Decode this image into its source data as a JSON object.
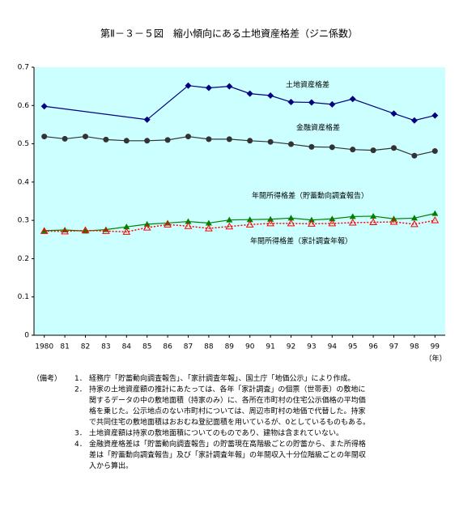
{
  "chart_data": {
    "type": "line",
    "title": "第Ⅱ－３－５図　縮小傾向にある土地資産格差（ジニ係数）",
    "x_unit": "（年）",
    "xlim": [
      1979.5,
      1999.5
    ],
    "xticks": [
      {
        "value": 1980,
        "label": "1980"
      },
      {
        "value": 1981,
        "label": "81"
      },
      {
        "value": 1982,
        "label": "82"
      },
      {
        "value": 1983,
        "label": "83"
      },
      {
        "value": 1984,
        "label": "84"
      },
      {
        "value": 1985,
        "label": "85"
      },
      {
        "value": 1986,
        "label": "86"
      },
      {
        "value": 1987,
        "label": "87"
      },
      {
        "value": 1988,
        "label": "88"
      },
      {
        "value": 1989,
        "label": "89"
      },
      {
        "value": 1990,
        "label": "90"
      },
      {
        "value": 1991,
        "label": "91"
      },
      {
        "value": 1992,
        "label": "92"
      },
      {
        "value": 1993,
        "label": "93"
      },
      {
        "value": 1994,
        "label": "94"
      },
      {
        "value": 1995,
        "label": "95"
      },
      {
        "value": 1996,
        "label": "96"
      },
      {
        "value": 1997,
        "label": "97"
      },
      {
        "value": 1998,
        "label": "98"
      },
      {
        "value": 1999,
        "label": "99"
      }
    ],
    "ylim": [
      0,
      0.7
    ],
    "yticks": [
      0,
      0.1,
      0.2,
      0.3,
      0.4,
      0.5,
      0.6,
      0.7
    ],
    "background": "#ccffff",
    "series": [
      {
        "name": "土地資産格差",
        "color": "#000080",
        "marker": "diamond",
        "dash": "solid",
        "x": [
          1980,
          1985,
          1987,
          1988,
          1989,
          1990,
          1991,
          1992,
          1993,
          1994,
          1995,
          1997,
          1998,
          1999
        ],
        "values": [
          0.598,
          0.563,
          0.652,
          0.646,
          0.65,
          0.631,
          0.626,
          0.609,
          0.608,
          0.603,
          0.617,
          0.579,
          0.561,
          0.574
        ]
      },
      {
        "name": "金融資産格差",
        "color": "#333333",
        "marker": "circle",
        "dash": "solid",
        "x": [
          1980,
          1981,
          1982,
          1983,
          1984,
          1985,
          1986,
          1987,
          1988,
          1989,
          1990,
          1991,
          1992,
          1993,
          1994,
          1995,
          1996,
          1997,
          1998,
          1999
        ],
        "values": [
          0.519,
          0.513,
          0.519,
          0.511,
          0.508,
          0.508,
          0.51,
          0.519,
          0.512,
          0.512,
          0.508,
          0.505,
          0.499,
          0.492,
          0.491,
          0.485,
          0.483,
          0.489,
          0.469,
          0.481
        ]
      },
      {
        "name": "年間所得格差（貯蓄動向調査報告）",
        "color": "#008000",
        "marker": "triangle",
        "dash": "solid",
        "x": [
          1980,
          1981,
          1982,
          1983,
          1984,
          1985,
          1986,
          1987,
          1988,
          1989,
          1990,
          1991,
          1992,
          1993,
          1994,
          1995,
          1996,
          1997,
          1998,
          1999
        ],
        "values": [
          0.273,
          0.275,
          0.272,
          0.276,
          0.283,
          0.29,
          0.293,
          0.297,
          0.293,
          0.301,
          0.302,
          0.303,
          0.306,
          0.301,
          0.304,
          0.31,
          0.311,
          0.304,
          0.306,
          0.318
        ]
      },
      {
        "name": "年間所得格差（家計調査年報）",
        "color": "#ff0000",
        "marker": "open-triangle",
        "dash": "dotted",
        "x": [
          1980,
          1981,
          1982,
          1983,
          1984,
          1985,
          1986,
          1987,
          1988,
          1989,
          1990,
          1991,
          1992,
          1993,
          1994,
          1995,
          1996,
          1997,
          1998,
          1999
        ],
        "values": [
          0.272,
          0.271,
          0.274,
          0.272,
          0.27,
          0.281,
          0.289,
          0.285,
          0.279,
          0.284,
          0.289,
          0.292,
          0.292,
          0.291,
          0.292,
          0.294,
          0.295,
          0.296,
          0.29,
          0.3
        ]
      }
    ]
  },
  "notes": {
    "label": "（備考）",
    "items": [
      {
        "number": "1．",
        "lines": [
          "経務庁「貯蓄動向調査報告」、「家計調査年報」、国土庁「地価公示」により作成。"
        ]
      },
      {
        "number": "2．",
        "lines": [
          "持家の土地資産額の推計にあたっては、各年「家計調査」の個票（世帯表）の敷地に",
          "関するデータの中の敷地面積（持家のみ）に、各所在市町村の住宅公示価格の平均価",
          "格を乗じた。公示地点のない市町村については、周辺市町村の地価で代替した。持家",
          "で共同住宅の敷地面積はおおむね登記面積を用いているが、0としているものもある。"
        ]
      },
      {
        "number": "3．",
        "lines": [
          "土地資産額は持家の敷地面積についてのものであり、建物は含まれていない。"
        ]
      },
      {
        "number": "4．",
        "lines": [
          "金融資産格差は「貯蓄動向調査報告」の貯蓄現在高階級ごとの貯蓄から、また所得格",
          "差は「貯蓄動向調査報告」及び「家計調査年報」の年間収入十分位階級ごとの年間収",
          "入から算出。"
        ]
      }
    ]
  }
}
